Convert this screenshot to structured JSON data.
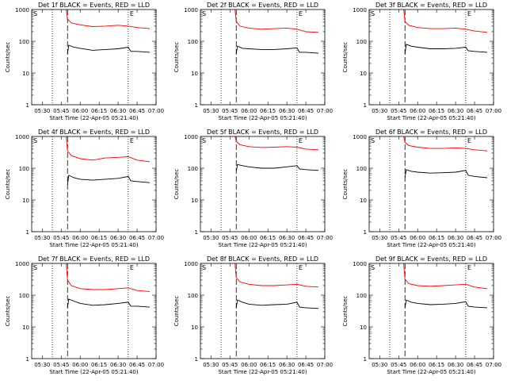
{
  "chart_data": [
    {
      "type": "line",
      "title": "Det 1f BLACK = Events, RED = LLD",
      "xlabel": "Start Time (22-Apr-05 05:21:40)",
      "ylabel": "Counts/sec",
      "x_tick_labels": [
        "05:30",
        "05:45",
        "06:00",
        "06:15",
        "06:30",
        "06:45",
        "07:00"
      ],
      "y_tick_labels": [
        "1",
        "10",
        "100",
        "1000"
      ],
      "xlim": [
        "05:21:40",
        "07:00"
      ],
      "ylim": [
        1,
        1000
      ],
      "y_scale": "log",
      "corner_labels": {
        "left": "S",
        "right": "E"
      },
      "annotations": [
        {
          "style": "dotted",
          "x": "05:38"
        },
        {
          "style": "dashed",
          "x": "05:50"
        },
        {
          "style": "dotted",
          "x": "06:38"
        }
      ],
      "series": [
        {
          "color": "#ff0000",
          "x": [
            "05:49",
            "05:50",
            "05:53",
            "06:00",
            "06:10",
            "06:20",
            "06:30",
            "06:38",
            "06:45",
            "06:55"
          ],
          "values": [
            1000,
            500,
            380,
            330,
            290,
            300,
            320,
            300,
            270,
            250
          ]
        },
        {
          "color": "#000000",
          "x": [
            "05:50",
            "05:51",
            "05:55",
            "06:00",
            "06:10",
            "06:20",
            "06:30",
            "06:38",
            "06:40",
            "06:45",
            "06:55"
          ],
          "values": [
            40,
            75,
            65,
            60,
            52,
            55,
            58,
            65,
            48,
            48,
            45
          ]
        }
      ]
    },
    {
      "type": "line",
      "title": "Det 2f BLACK = Events, RED = LLD",
      "xlabel": "Start Time (22-Apr-05 05:21:40)",
      "ylabel": "Counts/sec",
      "x_tick_labels": [
        "05:30",
        "05:45",
        "06:00",
        "06:15",
        "06:30",
        "06:45",
        "07:00"
      ],
      "y_tick_labels": [
        "1",
        "10",
        "100",
        "1000"
      ],
      "xlim": [
        "05:21:40",
        "07:00"
      ],
      "ylim": [
        1,
        1000
      ],
      "y_scale": "log",
      "corner_labels": {
        "left": "S",
        "right": "E"
      },
      "annotations": [
        {
          "style": "dotted",
          "x": "05:38"
        },
        {
          "style": "dashed",
          "x": "05:50"
        },
        {
          "style": "dotted",
          "x": "06:38"
        }
      ],
      "series": [
        {
          "color": "#ff0000",
          "x": [
            "05:49",
            "05:50",
            "05:53",
            "06:00",
            "06:10",
            "06:20",
            "06:30",
            "06:38",
            "06:45",
            "06:55"
          ],
          "values": [
            1000,
            420,
            300,
            260,
            240,
            250,
            260,
            240,
            200,
            190
          ]
        },
        {
          "color": "#000000",
          "x": [
            "05:50",
            "05:51",
            "05:55",
            "06:00",
            "06:10",
            "06:20",
            "06:30",
            "06:38",
            "06:40",
            "06:45",
            "06:55"
          ],
          "values": [
            40,
            70,
            60,
            58,
            55,
            55,
            58,
            62,
            45,
            45,
            42
          ]
        }
      ]
    },
    {
      "type": "line",
      "title": "Det 3f BLACK = Events, RED = LLD",
      "xlabel": "Start Time (22-Apr-05 05:21:40)",
      "ylabel": "Counts/sec",
      "x_tick_labels": [
        "05:30",
        "05:45",
        "06:00",
        "06:15",
        "06:30",
        "06:45",
        "07:00"
      ],
      "y_tick_labels": [
        "1",
        "10",
        "100",
        "1000"
      ],
      "xlim": [
        "05:21:40",
        "07:00"
      ],
      "ylim": [
        1,
        1000
      ],
      "y_scale": "log",
      "corner_labels": {
        "left": "S",
        "right": "E"
      },
      "annotations": [
        {
          "style": "dotted",
          "x": "05:38"
        },
        {
          "style": "dashed",
          "x": "05:50"
        },
        {
          "style": "dotted",
          "x": "06:38"
        }
      ],
      "series": [
        {
          "color": "#ff0000",
          "x": [
            "05:49",
            "05:50",
            "05:53",
            "06:00",
            "06:10",
            "06:20",
            "06:30",
            "06:38",
            "06:45",
            "06:55"
          ],
          "values": [
            1000,
            420,
            320,
            270,
            250,
            250,
            260,
            240,
            210,
            190
          ]
        },
        {
          "color": "#000000",
          "x": [
            "05:50",
            "05:51",
            "05:55",
            "06:00",
            "06:10",
            "06:20",
            "06:30",
            "06:38",
            "06:40",
            "06:45",
            "06:55"
          ],
          "values": [
            40,
            80,
            70,
            65,
            58,
            58,
            60,
            65,
            50,
            48,
            45
          ]
        }
      ]
    },
    {
      "type": "line",
      "title": "Det 4f BLACK = Events, RED = LLD",
      "xlabel": "Start Time (22-Apr-05 05:21:40)",
      "ylabel": "Counts/sec",
      "x_tick_labels": [
        "05:30",
        "05:45",
        "06:00",
        "06:15",
        "06:30",
        "06:45",
        "07:00"
      ],
      "y_tick_labels": [
        "1",
        "10",
        "100",
        "1000"
      ],
      "xlim": [
        "05:21:40",
        "07:00"
      ],
      "ylim": [
        1,
        1000
      ],
      "y_scale": "log",
      "corner_labels": {
        "left": "S",
        "right": "E"
      },
      "annotations": [
        {
          "style": "dotted",
          "x": "05:38"
        },
        {
          "style": "dashed",
          "x": "05:50"
        },
        {
          "style": "dotted",
          "x": "06:38"
        }
      ],
      "series": [
        {
          "color": "#ff0000",
          "x": [
            "05:49",
            "05:50",
            "05:53",
            "06:00",
            "06:10",
            "06:20",
            "06:30",
            "06:38",
            "06:45",
            "06:55"
          ],
          "values": [
            1000,
            350,
            250,
            200,
            180,
            210,
            220,
            230,
            180,
            160
          ]
        },
        {
          "color": "#000000",
          "x": [
            "05:50",
            "05:51",
            "05:55",
            "06:00",
            "06:10",
            "06:20",
            "06:30",
            "06:38",
            "06:40",
            "06:45",
            "06:55"
          ],
          "values": [
            30,
            60,
            50,
            45,
            42,
            45,
            48,
            55,
            40,
            38,
            35
          ]
        }
      ]
    },
    {
      "type": "line",
      "title": "Det 5f BLACK = Events, RED = LLD",
      "xlabel": "Start Time (22-Apr-05 05:21:40)",
      "ylabel": "Counts/sec",
      "x_tick_labels": [
        "05:30",
        "05:45",
        "06:00",
        "06:15",
        "06:30",
        "06:45",
        "07:00"
      ],
      "y_tick_labels": [
        "1",
        "10",
        "100",
        "1000"
      ],
      "xlim": [
        "05:21:40",
        "07:00"
      ],
      "ylim": [
        1,
        1000
      ],
      "y_scale": "log",
      "corner_labels": {
        "left": "S",
        "right": "E"
      },
      "annotations": [
        {
          "style": "dotted",
          "x": "05:38"
        },
        {
          "style": "dashed",
          "x": "05:50"
        },
        {
          "style": "dotted",
          "x": "06:38"
        }
      ],
      "series": [
        {
          "color": "#ff0000",
          "x": [
            "05:49",
            "05:50",
            "05:53",
            "06:00",
            "06:10",
            "06:20",
            "06:30",
            "06:38",
            "06:45",
            "06:55"
          ],
          "values": [
            1000,
            700,
            550,
            480,
            450,
            460,
            480,
            460,
            400,
            380
          ]
        },
        {
          "color": "#000000",
          "x": [
            "05:50",
            "05:51",
            "05:55",
            "06:00",
            "06:10",
            "06:20",
            "06:30",
            "06:38",
            "06:40",
            "06:45",
            "06:55"
          ],
          "values": [
            80,
            130,
            120,
            110,
            100,
            100,
            110,
            120,
            95,
            90,
            85
          ]
        }
      ]
    },
    {
      "type": "line",
      "title": "Det 6f BLACK = Events, RED = LLD",
      "xlabel": "Start Time (22-Apr-05 05:21:40)",
      "ylabel": "Counts/sec",
      "x_tick_labels": [
        "05:30",
        "05:45",
        "06:00",
        "06:15",
        "06:30",
        "06:45",
        "07:00"
      ],
      "y_tick_labels": [
        "1",
        "10",
        "100",
        "1000"
      ],
      "xlim": [
        "05:21:40",
        "07:00"
      ],
      "ylim": [
        1,
        1000
      ],
      "y_scale": "log",
      "corner_labels": {
        "left": "S",
        "right": "E"
      },
      "annotations": [
        {
          "style": "dotted",
          "x": "05:38"
        },
        {
          "style": "dashed",
          "x": "05:50"
        },
        {
          "style": "dotted",
          "x": "06:38"
        }
      ],
      "series": [
        {
          "color": "#ff0000",
          "x": [
            "05:49",
            "05:50",
            "05:53",
            "06:00",
            "06:10",
            "06:20",
            "06:30",
            "06:38",
            "06:45",
            "06:55"
          ],
          "values": [
            1000,
            650,
            520,
            460,
            420,
            420,
            440,
            420,
            380,
            350
          ]
        },
        {
          "color": "#000000",
          "x": [
            "05:50",
            "05:51",
            "05:55",
            "06:00",
            "06:10",
            "06:20",
            "06:30",
            "06:38",
            "06:40",
            "06:45",
            "06:55"
          ],
          "values": [
            50,
            90,
            80,
            75,
            70,
            72,
            75,
            85,
            60,
            55,
            50
          ]
        }
      ]
    },
    {
      "type": "line",
      "title": "Det 7f BLACK = Events, RED = LLD",
      "xlabel": "Start Time (22-Apr-05 05:21:40)",
      "ylabel": "Counts/sec",
      "x_tick_labels": [
        "05:30",
        "05:45",
        "06:00",
        "06:15",
        "06:30",
        "06:45",
        "07:00"
      ],
      "y_tick_labels": [
        "1",
        "10",
        "100",
        "1000"
      ],
      "xlim": [
        "05:21:40",
        "07:00"
      ],
      "ylim": [
        1,
        1000
      ],
      "y_scale": "log",
      "corner_labels": {
        "left": "S",
        "right": "E"
      },
      "annotations": [
        {
          "style": "dotted",
          "x": "05:38"
        },
        {
          "style": "dashed",
          "x": "05:50"
        },
        {
          "style": "dotted",
          "x": "06:38"
        }
      ],
      "series": [
        {
          "color": "#ff0000",
          "x": [
            "05:49",
            "05:50",
            "05:53",
            "06:00",
            "06:10",
            "06:20",
            "06:30",
            "06:38",
            "06:45",
            "06:55"
          ],
          "values": [
            1000,
            300,
            200,
            160,
            150,
            150,
            160,
            170,
            140,
            130
          ]
        },
        {
          "color": "#000000",
          "x": [
            "05:50",
            "05:51",
            "05:55",
            "06:00",
            "06:10",
            "06:20",
            "06:30",
            "06:38",
            "06:40",
            "06:45",
            "06:55"
          ],
          "values": [
            40,
            75,
            65,
            55,
            48,
            50,
            55,
            60,
            45,
            45,
            42
          ]
        }
      ]
    },
    {
      "type": "line",
      "title": "Det 8f BLACK = Events, RED = LLD",
      "xlabel": "Start Time (22-Apr-05 05:21:40)",
      "ylabel": "Counts/sec",
      "x_tick_labels": [
        "05:30",
        "05:45",
        "06:00",
        "06:15",
        "06:30",
        "06:45",
        "07:00"
      ],
      "y_tick_labels": [
        "1",
        "10",
        "100",
        "1000"
      ],
      "xlim": [
        "05:21:40",
        "07:00"
      ],
      "ylim": [
        1,
        1000
      ],
      "y_scale": "log",
      "corner_labels": {
        "left": "S",
        "right": "E"
      },
      "annotations": [
        {
          "style": "dotted",
          "x": "05:38"
        },
        {
          "style": "dashed",
          "x": "05:50"
        },
        {
          "style": "dotted",
          "x": "06:38"
        }
      ],
      "series": [
        {
          "color": "#ff0000",
          "x": [
            "05:49",
            "05:50",
            "05:53",
            "06:00",
            "06:10",
            "06:20",
            "06:30",
            "06:38",
            "06:45",
            "06:55"
          ],
          "values": [
            1000,
            350,
            260,
            220,
            200,
            200,
            210,
            220,
            190,
            180
          ]
        },
        {
          "color": "#000000",
          "x": [
            "05:50",
            "05:51",
            "05:55",
            "06:00",
            "06:10",
            "06:20",
            "06:30",
            "06:38",
            "06:40",
            "06:45",
            "06:55"
          ],
          "values": [
            40,
            70,
            60,
            52,
            48,
            50,
            52,
            60,
            42,
            40,
            38
          ]
        }
      ]
    },
    {
      "type": "line",
      "title": "Det 9f BLACK = Events, RED = LLD",
      "xlabel": "Start Time (22-Apr-05 05:21:40)",
      "ylabel": "Counts/sec",
      "x_tick_labels": [
        "05:30",
        "05:45",
        "06:00",
        "06:15",
        "06:30",
        "06:45",
        "07:00"
      ],
      "y_tick_labels": [
        "1",
        "10",
        "100",
        "1000"
      ],
      "xlim": [
        "05:21:40",
        "07:00"
      ],
      "ylim": [
        1,
        1000
      ],
      "y_scale": "log",
      "corner_labels": {
        "left": "S",
        "right": "E"
      },
      "annotations": [
        {
          "style": "dotted",
          "x": "05:38"
        },
        {
          "style": "dashed",
          "x": "05:50"
        },
        {
          "style": "dotted",
          "x": "06:38"
        }
      ],
      "series": [
        {
          "color": "#ff0000",
          "x": [
            "05:49",
            "05:50",
            "05:53",
            "06:00",
            "06:10",
            "06:20",
            "06:30",
            "06:38",
            "06:45",
            "06:55"
          ],
          "values": [
            1000,
            320,
            230,
            200,
            190,
            200,
            210,
            220,
            180,
            160
          ]
        },
        {
          "color": "#000000",
          "x": [
            "05:50",
            "05:51",
            "05:55",
            "06:00",
            "06:10",
            "06:20",
            "06:30",
            "06:38",
            "06:40",
            "06:45",
            "06:55"
          ],
          "values": [
            40,
            70,
            60,
            55,
            50,
            52,
            55,
            62,
            45,
            42,
            40
          ]
        }
      ]
    }
  ]
}
